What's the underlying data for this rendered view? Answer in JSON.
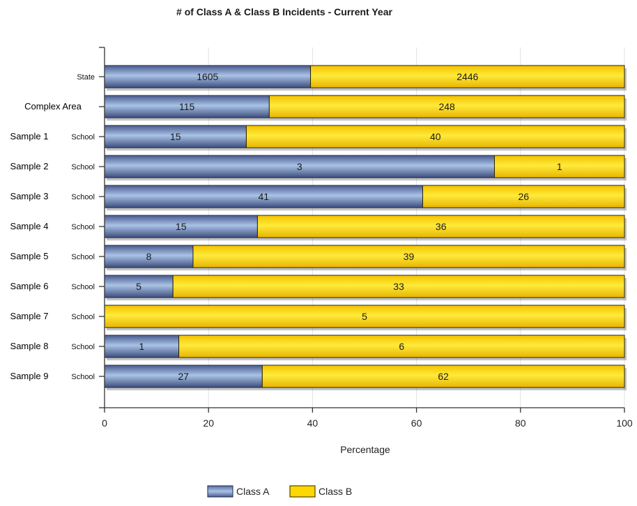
{
  "chart_data": {
    "type": "bar",
    "orientation": "horizontal",
    "stacked": true,
    "normalized": "percent",
    "title": "# of Class A & Class B Incidents - Current Year",
    "xlabel": "Percentage",
    "ylabel": "",
    "xlim": [
      0,
      100
    ],
    "xticks": [
      0,
      20,
      40,
      60,
      80,
      100
    ],
    "grid": true,
    "legend_position": "bottom",
    "categories": [
      {
        "main": "",
        "sub": "State"
      },
      {
        "main": "Complex Area",
        "sub": ""
      },
      {
        "main": "Sample 1",
        "sub": "School"
      },
      {
        "main": "Sample 2",
        "sub": "School"
      },
      {
        "main": "Sample 3",
        "sub": "School"
      },
      {
        "main": "Sample 4",
        "sub": "School"
      },
      {
        "main": "Sample 5",
        "sub": "School"
      },
      {
        "main": "Sample 6",
        "sub": "School"
      },
      {
        "main": "Sample 7",
        "sub": "School"
      },
      {
        "main": "Sample 8",
        "sub": "School"
      },
      {
        "main": "Sample 9",
        "sub": "School"
      }
    ],
    "series": [
      {
        "name": "Class A",
        "color": "#6f86b8",
        "values": [
          1605,
          115,
          15,
          3,
          41,
          15,
          8,
          5,
          0,
          1,
          27
        ]
      },
      {
        "name": "Class B",
        "color": "#ffd700",
        "values": [
          2446,
          248,
          40,
          1,
          26,
          36,
          39,
          33,
          5,
          6,
          62
        ]
      }
    ]
  }
}
